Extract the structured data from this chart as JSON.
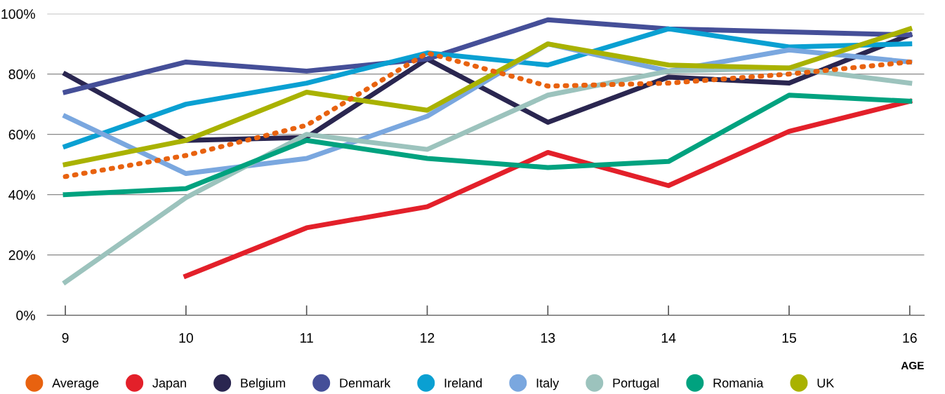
{
  "chart_data": {
    "type": "line",
    "xlabel": "AGE",
    "x": [
      9,
      10,
      11,
      12,
      13,
      14,
      15,
      16
    ],
    "xlim": [
      8.85,
      16.12
    ],
    "xticks": [
      9,
      10,
      11,
      12,
      13,
      14,
      15,
      16
    ],
    "ylim": [
      0,
      100
    ],
    "yticks": [
      {
        "value": 0,
        "label": "0%"
      },
      {
        "value": 20,
        "label": "20%"
      },
      {
        "value": 40,
        "label": "40%"
      },
      {
        "value": 60,
        "label": "60%"
      },
      {
        "value": 80,
        "label": "80%"
      },
      {
        "value": 100,
        "label": "100%"
      }
    ],
    "grid": "y",
    "legend": "bottom",
    "marker": "none",
    "series": [
      {
        "name": "Average",
        "color": "#e8620f",
        "line_style": "dotted",
        "values": [
          46,
          53,
          63,
          87,
          76,
          77,
          80,
          84
        ]
      },
      {
        "name": "Japan",
        "color": "#e3202a",
        "line_style": "solid",
        "values": [
          null,
          13,
          29,
          36,
          54,
          43,
          61,
          71
        ]
      },
      {
        "name": "Belgium",
        "color": "#2a2650",
        "line_style": "solid",
        "values": [
          80,
          58,
          59,
          85,
          64,
          79,
          77,
          93
        ]
      },
      {
        "name": "Denmark",
        "color": "#454f98",
        "line_style": "solid",
        "values": [
          74,
          84,
          81,
          85,
          98,
          95,
          94,
          93
        ]
      },
      {
        "name": "Ireland",
        "color": "#0aa0d2",
        "line_style": "solid",
        "values": [
          56,
          70,
          77,
          87,
          83,
          95,
          89,
          90
        ]
      },
      {
        "name": "Italy",
        "color": "#7aa7df",
        "line_style": "solid",
        "values": [
          66,
          47,
          52,
          66,
          90,
          81,
          88,
          84
        ]
      },
      {
        "name": "Portugal",
        "color": "#9cc3bd",
        "line_style": "solid",
        "values": [
          11,
          39,
          60,
          55,
          73,
          81,
          82,
          77
        ]
      },
      {
        "name": "Romania",
        "color": "#00a27f",
        "line_style": "solid",
        "values": [
          40,
          42,
          58,
          52,
          49,
          51,
          73,
          71
        ]
      },
      {
        "name": "UK",
        "color": "#a9b200",
        "line_style": "solid",
        "values": [
          50,
          58,
          74,
          68,
          90,
          83,
          82,
          95
        ]
      }
    ]
  }
}
